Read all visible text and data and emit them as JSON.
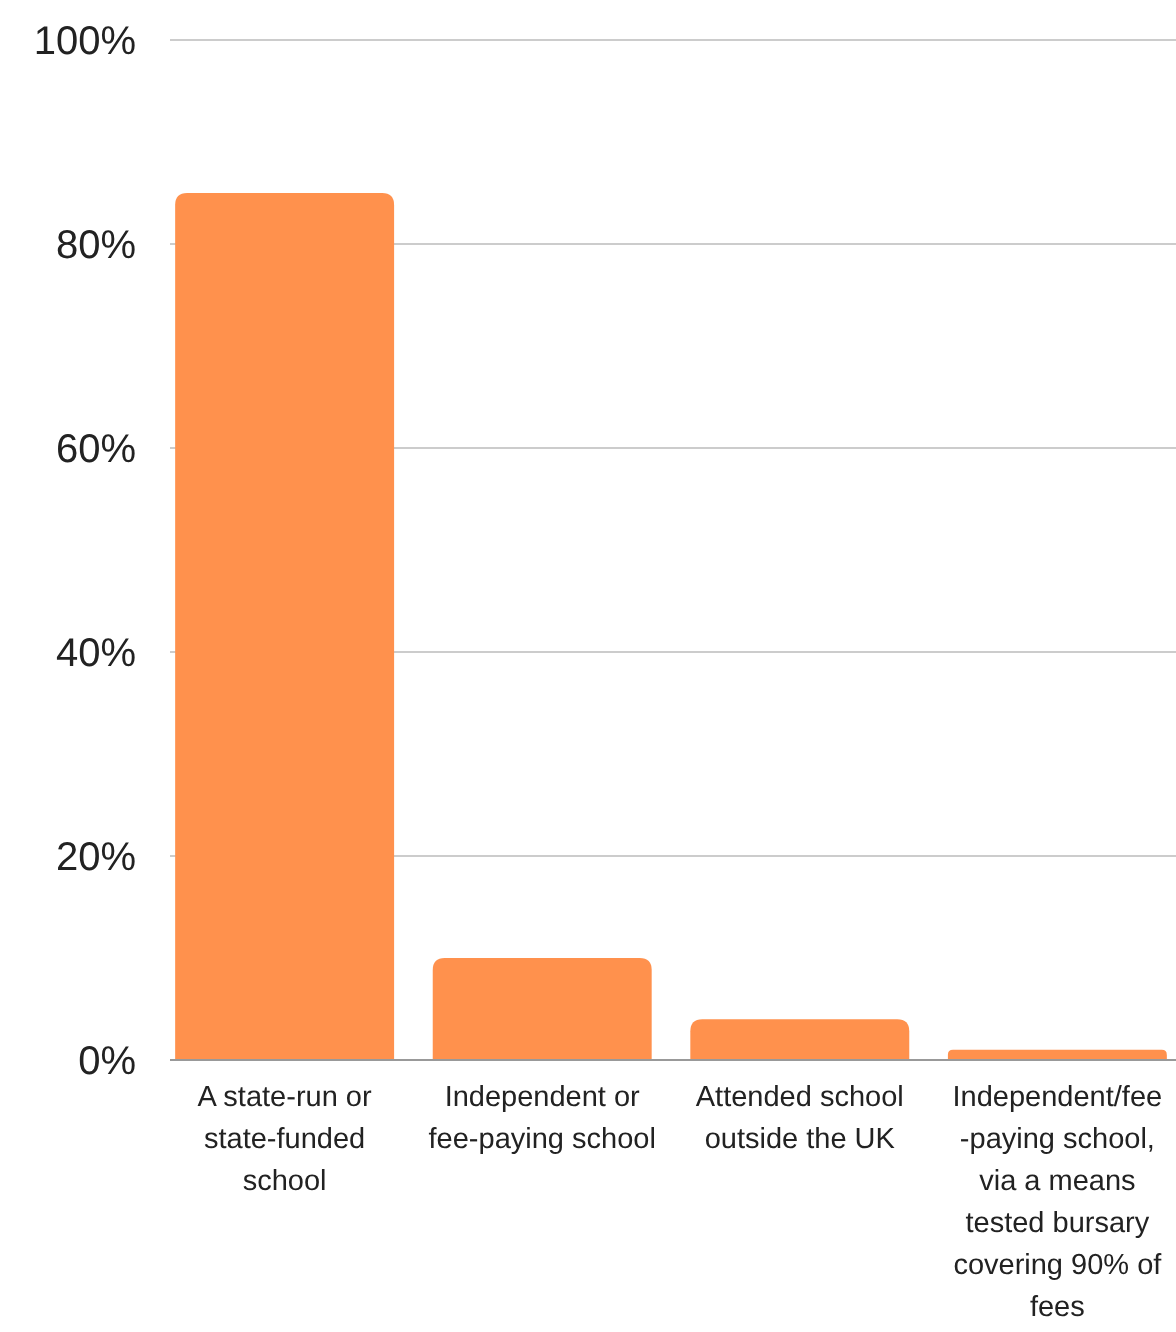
{
  "chart_data": {
    "type": "bar",
    "categories": [
      "A state-run or state-funded school",
      "Independent or fee-paying school",
      "Attended school outside the UK",
      "Independent/fee-paying school, via a means tested bursary covering 90% of fees"
    ],
    "values": [
      85,
      10,
      4,
      1
    ],
    "color": "#ff914d",
    "ylim": [
      0,
      100
    ],
    "yticks": [
      {
        "value": 0,
        "label": "0%"
      },
      {
        "value": 20,
        "label": "20%"
      },
      {
        "value": 40,
        "label": "40%"
      },
      {
        "value": 60,
        "label": "60%"
      },
      {
        "value": 80,
        "label": "80%"
      },
      {
        "value": 100,
        "label": "100%"
      }
    ],
    "grid": "y"
  }
}
